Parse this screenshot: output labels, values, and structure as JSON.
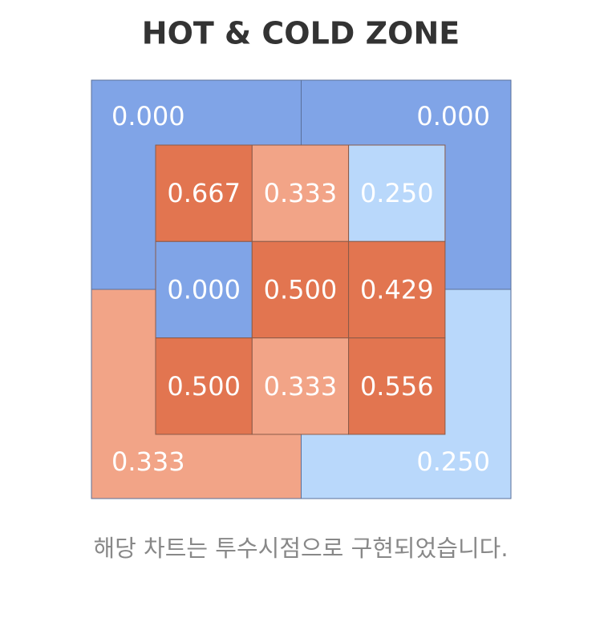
{
  "chart_data": {
    "type": "zone",
    "title": "HOT & COLD ZONE",
    "outer": {
      "values": [
        0,
        0,
        0.333,
        0.25
      ],
      "value_labels": [
        "0.000",
        "0.000",
        "0.333",
        "0.250"
      ],
      "colors": [
        "#80a4e7",
        "#80a4e7",
        "#f2a487",
        "#b9d8fb"
      ]
    },
    "inner": {
      "values": [
        0.667,
        0.333,
        0.25,
        0,
        0.5,
        0.429,
        0.5,
        0.333,
        0.556
      ],
      "value_labels": [
        "0.667",
        "0.333",
        "0.250",
        "0.000",
        "0.500",
        "0.429",
        "0.500",
        "0.333",
        "0.556"
      ],
      "colors": [
        "#e27550",
        "#f2a487",
        "#b9d8fb",
        "#80a4e7",
        "#e27550",
        "#e27550",
        "#e27550",
        "#f2a487",
        "#e27550"
      ]
    },
    "caption": "해당 차트는 투수시점으로 구현되었습니다."
  }
}
